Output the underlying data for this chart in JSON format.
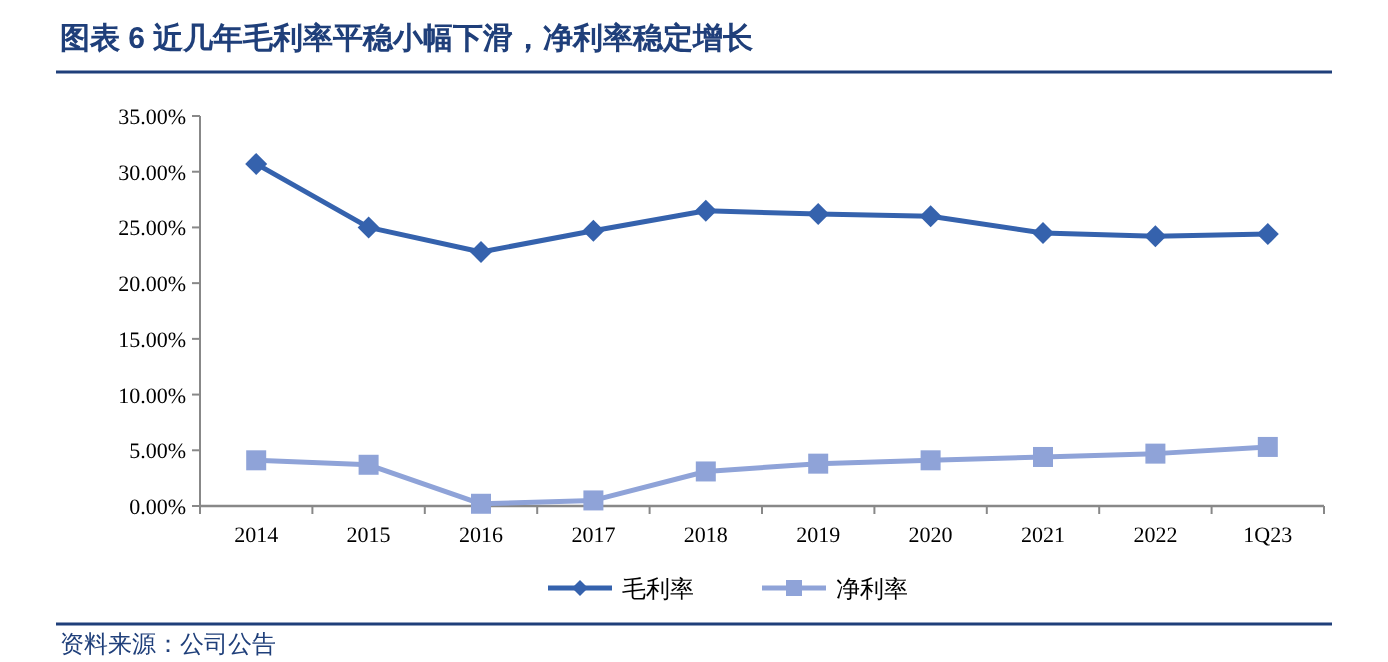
{
  "chart_data": {
    "type": "line",
    "title": "图表 6   近几年毛利率平稳小幅下滑，净利率稳定增长",
    "categories": [
      "2014",
      "2015",
      "2016",
      "2017",
      "2018",
      "2019",
      "2020",
      "2021",
      "2022",
      "1Q23"
    ],
    "series": [
      {
        "name": "毛利率",
        "color": "#3562ad",
        "marker": "diamond",
        "values": [
          30.7,
          25.0,
          22.8,
          24.7,
          26.5,
          26.2,
          26.0,
          24.5,
          24.2,
          24.4
        ]
      },
      {
        "name": "净利率",
        "color": "#8fa3d8",
        "marker": "square",
        "values": [
          4.1,
          3.7,
          0.2,
          0.5,
          3.1,
          3.8,
          4.1,
          4.4,
          4.7,
          5.3
        ]
      }
    ],
    "ylim": [
      0,
      35
    ],
    "yticks": [
      {
        "value": 0,
        "label": "0.00%"
      },
      {
        "value": 5,
        "label": "5.00%"
      },
      {
        "value": 10,
        "label": "10.00%"
      },
      {
        "value": 15,
        "label": "15.00%"
      },
      {
        "value": 20,
        "label": "20.00%"
      },
      {
        "value": 25,
        "label": "25.00%"
      },
      {
        "value": 30,
        "label": "30.00%"
      },
      {
        "value": 35,
        "label": "35.00%"
      }
    ],
    "grid": false,
    "legend": "bottom",
    "line_style": "solid",
    "annotations": [
      "资料来源：公司公告"
    ]
  }
}
